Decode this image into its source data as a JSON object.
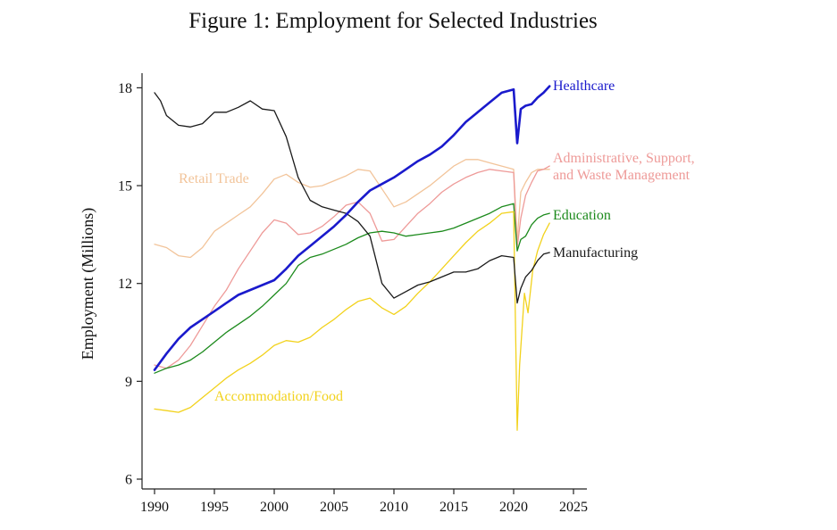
{
  "chart_data": {
    "type": "line",
    "title": "Figure 1: Employment for Selected Industries",
    "ylabel": "Employment (Millions)",
    "xlabel": "",
    "xlim": [
      1990,
      2025
    ],
    "ylim": [
      6,
      18.5
    ],
    "xticks": [
      1990,
      1995,
      2000,
      2005,
      2010,
      2015,
      2020,
      2025
    ],
    "yticks": [
      6,
      9,
      12,
      15,
      18
    ],
    "grid": false,
    "legend": "labels at line ends",
    "series": [
      {
        "name": "Retail Trade",
        "color": "#f2c49a",
        "width": 1.3,
        "values": [
          [
            1990,
            13.2
          ],
          [
            1991,
            13.1
          ],
          [
            1992,
            12.85
          ],
          [
            1993,
            12.8
          ],
          [
            1994,
            13.1
          ],
          [
            1995,
            13.6
          ],
          [
            1996,
            13.85
          ],
          [
            1997,
            14.1
          ],
          [
            1998,
            14.35
          ],
          [
            1999,
            14.75
          ],
          [
            2000,
            15.2
          ],
          [
            2001,
            15.35
          ],
          [
            2002,
            15.1
          ],
          [
            2003,
            14.95
          ],
          [
            2004,
            15.0
          ],
          [
            2005,
            15.15
          ],
          [
            2006,
            15.3
          ],
          [
            2007,
            15.5
          ],
          [
            2008,
            15.45
          ],
          [
            2009,
            14.9
          ],
          [
            2010,
            14.35
          ],
          [
            2011,
            14.5
          ],
          [
            2012,
            14.75
          ],
          [
            2013,
            15.0
          ],
          [
            2014,
            15.3
          ],
          [
            2015,
            15.6
          ],
          [
            2016,
            15.8
          ],
          [
            2017,
            15.8
          ],
          [
            2018,
            15.7
          ],
          [
            2019,
            15.6
          ],
          [
            2020.0,
            15.5
          ],
          [
            2020.3,
            13.3
          ],
          [
            2020.6,
            14.8
          ],
          [
            2021,
            15.1
          ],
          [
            2021.5,
            15.4
          ],
          [
            2022,
            15.5
          ],
          [
            2022.5,
            15.5
          ],
          [
            2023,
            15.5
          ]
        ]
      },
      {
        "name": "Administrative, Support, and Waste Management",
        "color": "#ee9a98",
        "width": 1.3,
        "values": [
          [
            1990,
            9.5
          ],
          [
            1991,
            9.4
          ],
          [
            1992,
            9.65
          ],
          [
            1993,
            10.1
          ],
          [
            1994,
            10.7
          ],
          [
            1995,
            11.3
          ],
          [
            1996,
            11.8
          ],
          [
            1997,
            12.45
          ],
          [
            1998,
            13.0
          ],
          [
            1999,
            13.55
          ],
          [
            2000,
            13.95
          ],
          [
            2001,
            13.85
          ],
          [
            2002,
            13.5
          ],
          [
            2003,
            13.55
          ],
          [
            2004,
            13.75
          ],
          [
            2005,
            14.05
          ],
          [
            2006,
            14.4
          ],
          [
            2007,
            14.5
          ],
          [
            2008,
            14.15
          ],
          [
            2009,
            13.3
          ],
          [
            2010,
            13.35
          ],
          [
            2011,
            13.75
          ],
          [
            2012,
            14.15
          ],
          [
            2013,
            14.45
          ],
          [
            2014,
            14.8
          ],
          [
            2015,
            15.05
          ],
          [
            2016,
            15.25
          ],
          [
            2017,
            15.4
          ],
          [
            2018,
            15.5
          ],
          [
            2019,
            15.45
          ],
          [
            2020.0,
            15.4
          ],
          [
            2020.3,
            13.1
          ],
          [
            2020.6,
            14.0
          ],
          [
            2021,
            14.7
          ],
          [
            2021.5,
            15.1
          ],
          [
            2022,
            15.45
          ],
          [
            2022.5,
            15.5
          ],
          [
            2023,
            15.6
          ]
        ]
      },
      {
        "name": "Education",
        "color": "#1c8a1c",
        "width": 1.3,
        "values": [
          [
            1990,
            9.25
          ],
          [
            1991,
            9.4
          ],
          [
            1992,
            9.5
          ],
          [
            1993,
            9.65
          ],
          [
            1994,
            9.9
          ],
          [
            1995,
            10.2
          ],
          [
            1996,
            10.5
          ],
          [
            1997,
            10.75
          ],
          [
            1998,
            11.0
          ],
          [
            1999,
            11.3
          ],
          [
            2000,
            11.65
          ],
          [
            2001,
            12.0
          ],
          [
            2002,
            12.55
          ],
          [
            2003,
            12.8
          ],
          [
            2004,
            12.9
          ],
          [
            2005,
            13.05
          ],
          [
            2006,
            13.2
          ],
          [
            2007,
            13.4
          ],
          [
            2008,
            13.55
          ],
          [
            2009,
            13.6
          ],
          [
            2010,
            13.55
          ],
          [
            2011,
            13.45
          ],
          [
            2012,
            13.5
          ],
          [
            2013,
            13.55
          ],
          [
            2014,
            13.6
          ],
          [
            2015,
            13.7
          ],
          [
            2016,
            13.85
          ],
          [
            2017,
            14.0
          ],
          [
            2018,
            14.15
          ],
          [
            2019,
            14.35
          ],
          [
            2020.0,
            14.45
          ],
          [
            2020.3,
            13.0
          ],
          [
            2020.6,
            13.35
          ],
          [
            2021,
            13.45
          ],
          [
            2021.5,
            13.8
          ],
          [
            2022,
            14.0
          ],
          [
            2022.5,
            14.1
          ],
          [
            2023,
            14.15
          ]
        ]
      },
      {
        "name": "Accommodation/Food",
        "color": "#f2d21c",
        "width": 1.3,
        "values": [
          [
            1990,
            8.15
          ],
          [
            1991,
            8.1
          ],
          [
            1992,
            8.05
          ],
          [
            1993,
            8.2
          ],
          [
            1994,
            8.5
          ],
          [
            1995,
            8.8
          ],
          [
            1996,
            9.1
          ],
          [
            1997,
            9.35
          ],
          [
            1998,
            9.55
          ],
          [
            1999,
            9.8
          ],
          [
            2000,
            10.1
          ],
          [
            2001,
            10.25
          ],
          [
            2002,
            10.2
          ],
          [
            2003,
            10.35
          ],
          [
            2004,
            10.65
          ],
          [
            2005,
            10.9
          ],
          [
            2006,
            11.2
          ],
          [
            2007,
            11.45
          ],
          [
            2008,
            11.55
          ],
          [
            2009,
            11.25
          ],
          [
            2010,
            11.05
          ],
          [
            2011,
            11.3
          ],
          [
            2012,
            11.7
          ],
          [
            2013,
            12.05
          ],
          [
            2014,
            12.45
          ],
          [
            2015,
            12.85
          ],
          [
            2016,
            13.25
          ],
          [
            2017,
            13.6
          ],
          [
            2018,
            13.85
          ],
          [
            2019,
            14.15
          ],
          [
            2020.0,
            14.2
          ],
          [
            2020.3,
            7.5
          ],
          [
            2020.5,
            9.5
          ],
          [
            2020.9,
            11.7
          ],
          [
            2021.2,
            11.1
          ],
          [
            2021.6,
            12.4
          ],
          [
            2022,
            13.0
          ],
          [
            2022.5,
            13.5
          ],
          [
            2023,
            13.85
          ]
        ]
      },
      {
        "name": "Manufacturing",
        "color": "#1a1a1a",
        "width": 1.3,
        "values": [
          [
            1990,
            17.85
          ],
          [
            1990.5,
            17.6
          ],
          [
            1991,
            17.15
          ],
          [
            1992,
            16.85
          ],
          [
            1993,
            16.8
          ],
          [
            1994,
            16.9
          ],
          [
            1995,
            17.25
          ],
          [
            1996,
            17.25
          ],
          [
            1997,
            17.4
          ],
          [
            1998,
            17.6
          ],
          [
            1999,
            17.35
          ],
          [
            2000,
            17.3
          ],
          [
            2001,
            16.5
          ],
          [
            2002,
            15.25
          ],
          [
            2003,
            14.55
          ],
          [
            2004,
            14.35
          ],
          [
            2005,
            14.25
          ],
          [
            2006,
            14.15
          ],
          [
            2007,
            13.9
          ],
          [
            2008,
            13.45
          ],
          [
            2009,
            12.0
          ],
          [
            2010,
            11.55
          ],
          [
            2011,
            11.75
          ],
          [
            2012,
            11.95
          ],
          [
            2013,
            12.05
          ],
          [
            2014,
            12.2
          ],
          [
            2015,
            12.35
          ],
          [
            2016,
            12.35
          ],
          [
            2017,
            12.45
          ],
          [
            2018,
            12.7
          ],
          [
            2019,
            12.85
          ],
          [
            2020.0,
            12.8
          ],
          [
            2020.3,
            11.4
          ],
          [
            2020.6,
            11.85
          ],
          [
            2021,
            12.2
          ],
          [
            2021.5,
            12.4
          ],
          [
            2022,
            12.7
          ],
          [
            2022.5,
            12.9
          ],
          [
            2023,
            12.95
          ]
        ]
      },
      {
        "name": "Healthcare",
        "color": "#1a1acc",
        "width": 2.6,
        "values": [
          [
            1990,
            9.35
          ],
          [
            1991,
            9.85
          ],
          [
            1992,
            10.3
          ],
          [
            1993,
            10.65
          ],
          [
            1994,
            10.9
          ],
          [
            1995,
            11.15
          ],
          [
            1996,
            11.4
          ],
          [
            1997,
            11.65
          ],
          [
            1998,
            11.8
          ],
          [
            1999,
            11.95
          ],
          [
            2000,
            12.1
          ],
          [
            2001,
            12.45
          ],
          [
            2002,
            12.85
          ],
          [
            2003,
            13.15
          ],
          [
            2004,
            13.45
          ],
          [
            2005,
            13.75
          ],
          [
            2006,
            14.1
          ],
          [
            2007,
            14.5
          ],
          [
            2008,
            14.85
          ],
          [
            2009,
            15.05
          ],
          [
            2010,
            15.25
          ],
          [
            2011,
            15.5
          ],
          [
            2012,
            15.75
          ],
          [
            2013,
            15.95
          ],
          [
            2014,
            16.2
          ],
          [
            2015,
            16.55
          ],
          [
            2016,
            16.95
          ],
          [
            2017,
            17.25
          ],
          [
            2018,
            17.55
          ],
          [
            2019,
            17.85
          ],
          [
            2020.0,
            17.95
          ],
          [
            2020.3,
            16.3
          ],
          [
            2020.6,
            17.35
          ],
          [
            2021,
            17.45
          ],
          [
            2021.5,
            17.5
          ],
          [
            2022,
            17.7
          ],
          [
            2022.5,
            17.85
          ],
          [
            2023,
            18.05
          ]
        ]
      }
    ],
    "labels": [
      {
        "series": "Healthcare",
        "lines": [
          "Healthcare"
        ]
      },
      {
        "series": "Administrative, Support, and Waste Management",
        "lines": [
          "Administrative, Support,",
          "and Waste Management"
        ]
      },
      {
        "series": "Education",
        "lines": [
          "Education"
        ]
      },
      {
        "series": "Manufacturing",
        "lines": [
          "Manufacturing"
        ]
      },
      {
        "series": "Retail Trade",
        "lines": [
          "Retail Trade"
        ]
      },
      {
        "series": "Accommodation/Food",
        "lines": [
          "Accommodation/Food"
        ]
      }
    ]
  }
}
